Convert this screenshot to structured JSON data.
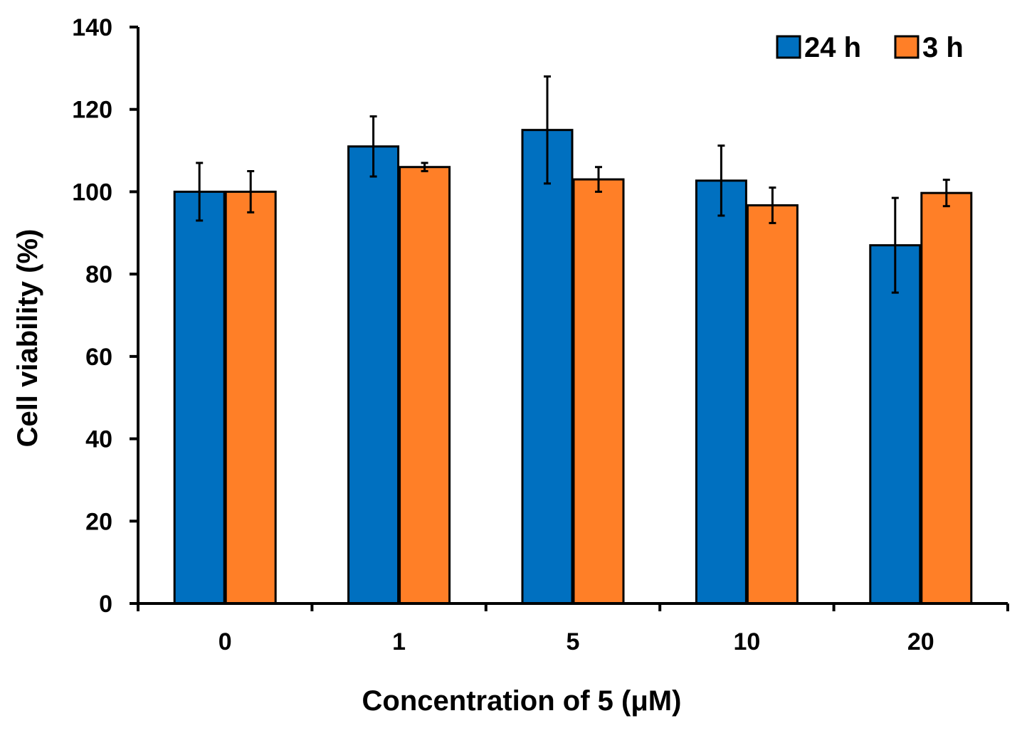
{
  "chart_data": {
    "type": "bar",
    "title": "",
    "xlabel": "Concentration of 5 (μM)",
    "ylabel": "Cell viability (%)",
    "categories": [
      "0",
      "1",
      "5",
      "10",
      "20"
    ],
    "ylim": [
      0,
      140
    ],
    "yticks": [
      "0",
      "20",
      "40",
      "60",
      "80",
      "100",
      "120",
      "140"
    ],
    "grid": false,
    "legend_position": "top-right",
    "series": [
      {
        "name": "24 h",
        "color": "#0070C0",
        "values": [
          100,
          111,
          115,
          102.7,
          87
        ],
        "errors": [
          7,
          7.3,
          13,
          8.5,
          11.5
        ]
      },
      {
        "name": "3 h",
        "color": "#FF7F27",
        "values": [
          100,
          106,
          103,
          96.7,
          99.7
        ],
        "errors": [
          5,
          1,
          3,
          4.3,
          3.2
        ]
      }
    ]
  }
}
